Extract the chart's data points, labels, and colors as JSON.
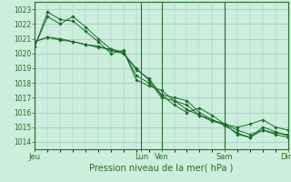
{
  "bg_color": "#cceedd",
  "grid_color": "#99ccbb",
  "line_color": "#1a6b2a",
  "marker_color": "#1a6b2a",
  "xlabel": "Pression niveau de la mer( hPa )",
  "ylim": [
    1013.5,
    1023.5
  ],
  "yticks": [
    1014,
    1015,
    1016,
    1017,
    1018,
    1019,
    1020,
    1021,
    1022,
    1023
  ],
  "xtick_labels": [
    "Jeu",
    "Lun",
    "Ven",
    "Sam",
    "Dim"
  ],
  "xtick_positions": [
    0.0,
    0.42,
    0.5,
    0.75,
    1.0
  ],
  "vline_positions": [
    0.0,
    0.42,
    0.5,
    0.75,
    1.0
  ],
  "series": [
    [
      1020.5,
      1022.8,
      1022.3,
      1022.2,
      1021.5,
      1020.8,
      1020.0,
      1020.2,
      1018.2,
      1017.8,
      1017.5,
      1016.8,
      1016.2,
      1015.8,
      1015.5,
      1015.2,
      1014.5,
      1014.3,
      1014.8,
      1014.5,
      1014.3
    ],
    [
      1020.5,
      1022.5,
      1022.0,
      1022.5,
      1021.8,
      1021.0,
      1020.3,
      1020.1,
      1018.5,
      1018.0,
      1017.2,
      1016.5,
      1016.0,
      1016.3,
      1015.8,
      1015.2,
      1015.0,
      1015.2,
      1015.5,
      1015.0,
      1014.8
    ],
    [
      1020.8,
      1021.1,
      1021.0,
      1020.8,
      1020.6,
      1020.5,
      1020.2,
      1020.0,
      1019.0,
      1018.2,
      1017.0,
      1016.8,
      1016.5,
      1015.8,
      1015.4,
      1015.2,
      1014.8,
      1014.5,
      1014.8,
      1014.6,
      1014.5
    ],
    [
      1020.8,
      1021.1,
      1020.9,
      1020.8,
      1020.6,
      1020.4,
      1020.3,
      1020.0,
      1018.9,
      1018.3,
      1017.2,
      1017.0,
      1016.8,
      1016.0,
      1015.5,
      1015.1,
      1014.6,
      1014.3,
      1015.0,
      1014.7,
      1014.4
    ]
  ],
  "n_points": 21,
  "spine_color": "#2a6a2a",
  "xlabel_fontsize": 7,
  "ytick_fontsize": 5.5,
  "xtick_fontsize": 6
}
